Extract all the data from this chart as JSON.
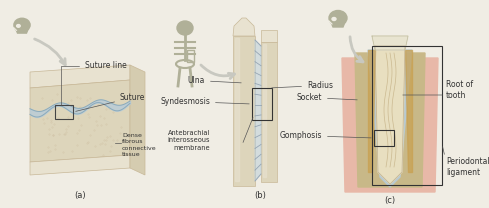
{
  "figure_bg": "#f0ede4",
  "bone_color": "#ddd5bb",
  "bone_light": "#e8e2d0",
  "bone_dark": "#c8b898",
  "suture_blue": "#b8ccd8",
  "suture_dark": "#8aaabb",
  "pink_gum": "#e8b8a8",
  "pink_light": "#f0cfc0",
  "tan_socket": "#c8b888",
  "blue_perio": "#b8ccd8",
  "tooth_ivory": "#e8dfc0",
  "tooth_brown": "#c8a050",
  "gray_skull": "#b0b098",
  "arrow_color": "#c8c8c0",
  "label_color": "#333333",
  "line_color": "#555555"
}
